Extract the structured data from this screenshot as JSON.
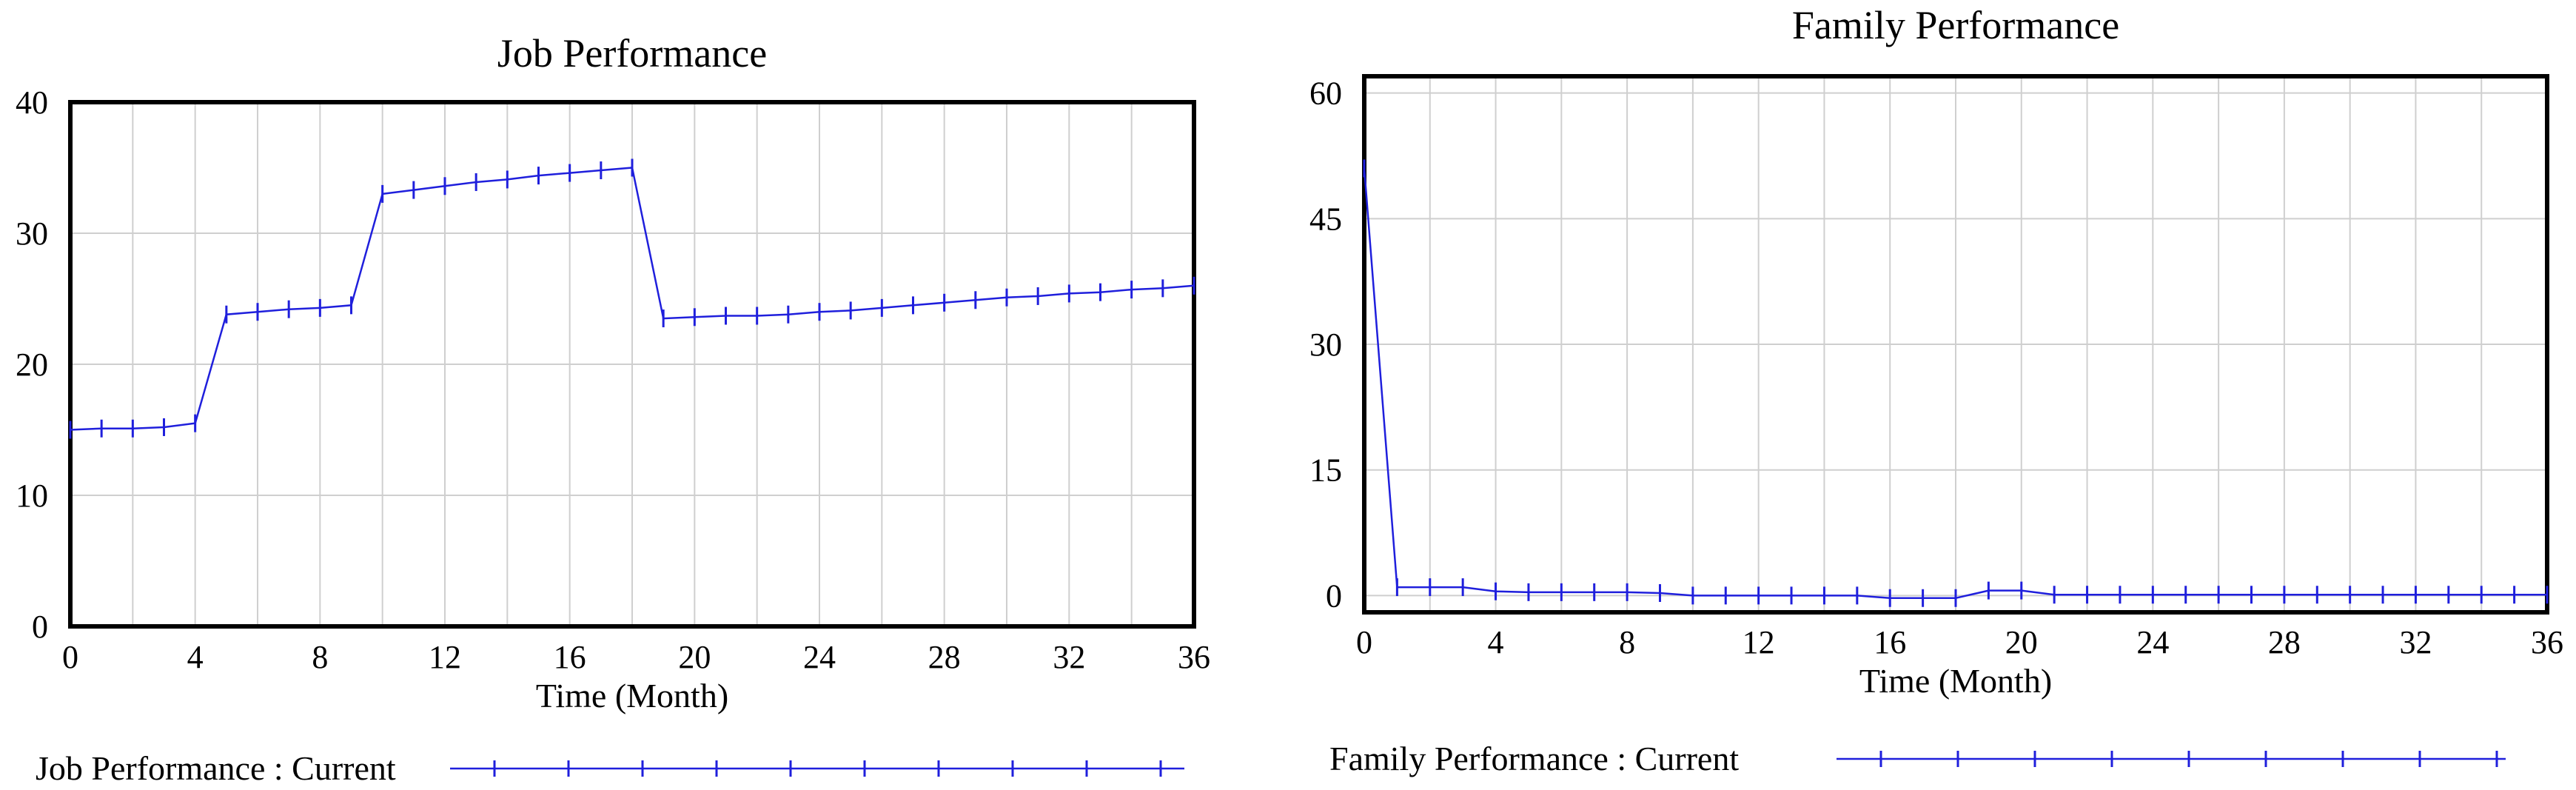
{
  "chart_data": [
    {
      "type": "line",
      "title": "Job Performance",
      "xlabel": "Time (Month)",
      "ylabel": "",
      "xlim": [
        0,
        36
      ],
      "ylim": [
        0,
        40
      ],
      "x_ticks": [
        0,
        4,
        8,
        12,
        16,
        20,
        24,
        28,
        32,
        36
      ],
      "y_ticks": [
        0,
        10,
        20,
        30,
        40
      ],
      "grid": true,
      "legend_position": "bottom",
      "series": [
        {
          "name": "Job Performance : Current",
          "color": "#1f1fdc",
          "x": [
            0,
            1,
            2,
            3,
            4,
            5,
            6,
            7,
            8,
            9,
            10,
            11,
            12,
            13,
            14,
            15,
            16,
            17,
            18,
            19,
            20,
            21,
            22,
            23,
            24,
            25,
            26,
            27,
            28,
            29,
            30,
            31,
            32,
            33,
            34,
            35,
            36
          ],
          "y": [
            15.0,
            15.1,
            15.1,
            15.2,
            15.5,
            23.8,
            24.0,
            24.2,
            24.3,
            24.5,
            33.0,
            33.3,
            33.6,
            33.9,
            34.1,
            34.4,
            34.6,
            34.8,
            35.0,
            23.5,
            23.6,
            23.7,
            23.7,
            23.8,
            24.0,
            24.1,
            24.3,
            24.5,
            24.7,
            24.9,
            25.1,
            25.2,
            25.4,
            25.5,
            25.7,
            25.8,
            26.0
          ]
        }
      ]
    },
    {
      "type": "line",
      "title": "Family Performance",
      "xlabel": "Time (Month)",
      "ylabel": "",
      "xlim": [
        0,
        36
      ],
      "ylim": [
        -2,
        62
      ],
      "x_ticks": [
        0,
        4,
        8,
        12,
        16,
        20,
        24,
        28,
        32,
        36
      ],
      "y_ticks": [
        0,
        15,
        30,
        45,
        60
      ],
      "grid": true,
      "legend_position": "bottom",
      "series": [
        {
          "name": "Family Performance : Current",
          "color": "#1f1fdc",
          "x": [
            0,
            1,
            2,
            3,
            4,
            5,
            6,
            7,
            8,
            9,
            10,
            11,
            12,
            13,
            14,
            15,
            16,
            17,
            18,
            19,
            20,
            21,
            22,
            23,
            24,
            25,
            26,
            27,
            28,
            29,
            30,
            31,
            32,
            33,
            34,
            35,
            36
          ],
          "y": [
            51,
            1.0,
            1.0,
            1.0,
            0.5,
            0.4,
            0.4,
            0.4,
            0.4,
            0.3,
            0.0,
            0.0,
            0.0,
            0.0,
            0.0,
            0.0,
            -0.3,
            -0.3,
            -0.3,
            0.6,
            0.6,
            0.1,
            0.1,
            0.1,
            0.1,
            0.1,
            0.1,
            0.1,
            0.1,
            0.1,
            0.1,
            0.1,
            0.1,
            0.1,
            0.1,
            0.1,
            0.1
          ]
        }
      ]
    }
  ]
}
